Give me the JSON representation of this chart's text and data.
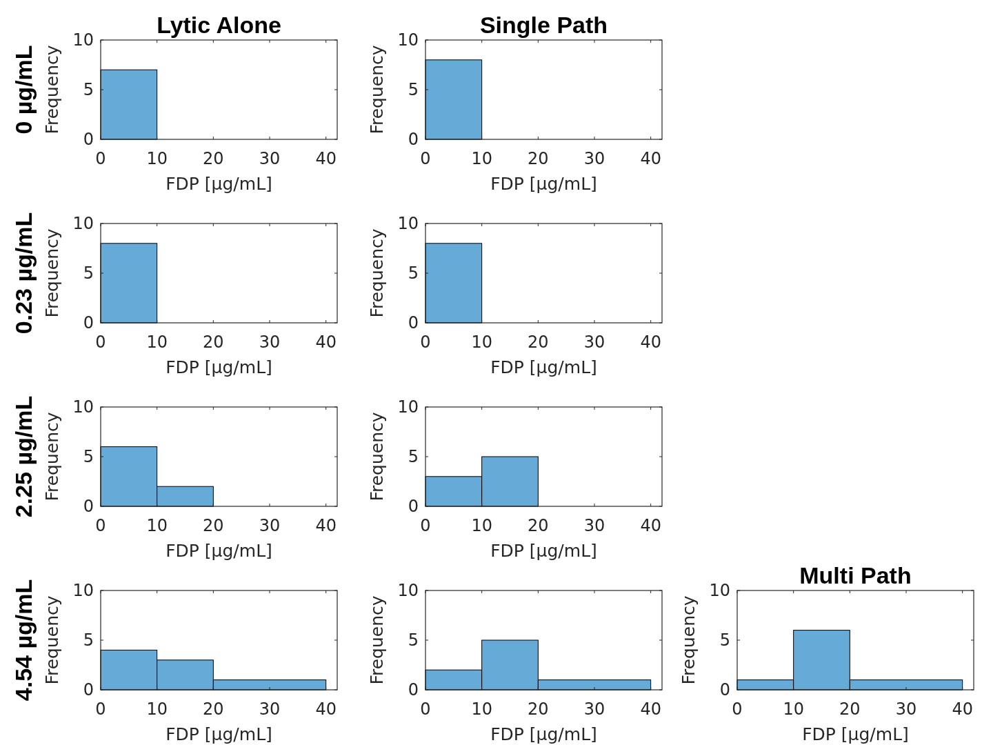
{
  "chart_data": [
    {
      "type": "histogram",
      "title": "Lytic Alone",
      "annotations": [
        "0 µg/mL"
      ],
      "bins": [
        0,
        10
      ],
      "values": [
        7
      ],
      "color": "#66aad7",
      "xlim": [
        0,
        42
      ],
      "xticks": [
        0,
        10,
        20,
        30,
        40
      ],
      "ylim": [
        0,
        10
      ],
      "yticks": [
        0,
        5,
        10
      ],
      "xlabel": "FDP [µg/mL]",
      "ylabel": "Frequency"
    },
    {
      "type": "histogram",
      "title": "Single Path",
      "bins": [
        0,
        10
      ],
      "values": [
        8
      ],
      "color": "#66aad7",
      "xlim": [
        0,
        42
      ],
      "xticks": [
        0,
        10,
        20,
        30,
        40
      ],
      "ylim": [
        0,
        10
      ],
      "yticks": [
        0,
        5,
        10
      ],
      "xlabel": "FDP [µg/mL]",
      "ylabel": "Frequency"
    },
    {
      "type": "histogram",
      "annotations": [
        "0.23 µg/mL"
      ],
      "bins": [
        0,
        10
      ],
      "values": [
        8
      ],
      "color": "#66aad7",
      "xlim": [
        0,
        42
      ],
      "xticks": [
        0,
        10,
        20,
        30,
        40
      ],
      "ylim": [
        0,
        10
      ],
      "yticks": [
        0,
        5,
        10
      ],
      "xlabel": "FDP [µg/mL]",
      "ylabel": "Frequency"
    },
    {
      "type": "histogram",
      "bins": [
        0,
        10
      ],
      "values": [
        8
      ],
      "color": "#66aad7",
      "xlim": [
        0,
        42
      ],
      "xticks": [
        0,
        10,
        20,
        30,
        40
      ],
      "ylim": [
        0,
        10
      ],
      "yticks": [
        0,
        5,
        10
      ],
      "xlabel": "FDP [µg/mL]",
      "ylabel": "Frequency"
    },
    {
      "type": "histogram",
      "annotations": [
        "2.25 µg/mL"
      ],
      "bins": [
        0,
        10,
        20
      ],
      "values": [
        6,
        2
      ],
      "color": "#66aad7",
      "xlim": [
        0,
        42
      ],
      "xticks": [
        0,
        10,
        20,
        30,
        40
      ],
      "ylim": [
        0,
        10
      ],
      "yticks": [
        0,
        5,
        10
      ],
      "xlabel": "FDP [µg/mL]",
      "ylabel": "Frequency"
    },
    {
      "type": "histogram",
      "bins": [
        0,
        10,
        20
      ],
      "values": [
        3,
        5
      ],
      "color": "#66aad7",
      "xlim": [
        0,
        42
      ],
      "xticks": [
        0,
        10,
        20,
        30,
        40
      ],
      "ylim": [
        0,
        10
      ],
      "yticks": [
        0,
        5,
        10
      ],
      "xlabel": "FDP [µg/mL]",
      "ylabel": "Frequency"
    },
    {
      "type": "histogram",
      "annotations": [
        "4.54 µg/mL"
      ],
      "bins": [
        0,
        10,
        20,
        40
      ],
      "values": [
        4,
        3,
        1
      ],
      "color": "#66aad7",
      "xlim": [
        0,
        42
      ],
      "xticks": [
        0,
        10,
        20,
        30,
        40
      ],
      "ylim": [
        0,
        10
      ],
      "yticks": [
        0,
        5,
        10
      ],
      "xlabel": "FDP [µg/mL]",
      "ylabel": "Frequency"
    },
    {
      "type": "histogram",
      "bins": [
        0,
        10,
        20,
        40
      ],
      "values": [
        2,
        5,
        1
      ],
      "color": "#66aad7",
      "xlim": [
        0,
        42
      ],
      "xticks": [
        0,
        10,
        20,
        30,
        40
      ],
      "ylim": [
        0,
        10
      ],
      "yticks": [
        0,
        5,
        10
      ],
      "xlabel": "FDP [µg/mL]",
      "ylabel": "Frequency"
    },
    {
      "type": "histogram",
      "title": "Multi Path",
      "bins": [
        0,
        10,
        20,
        40
      ],
      "values": [
        1,
        6,
        1
      ],
      "color": "#66aad7",
      "xlim": [
        0,
        42
      ],
      "xticks": [
        0,
        10,
        20,
        30,
        40
      ],
      "ylim": [
        0,
        10
      ],
      "yticks": [
        0,
        5,
        10
      ],
      "xlabel": "FDP [µg/mL]",
      "ylabel": "Frequency"
    }
  ]
}
